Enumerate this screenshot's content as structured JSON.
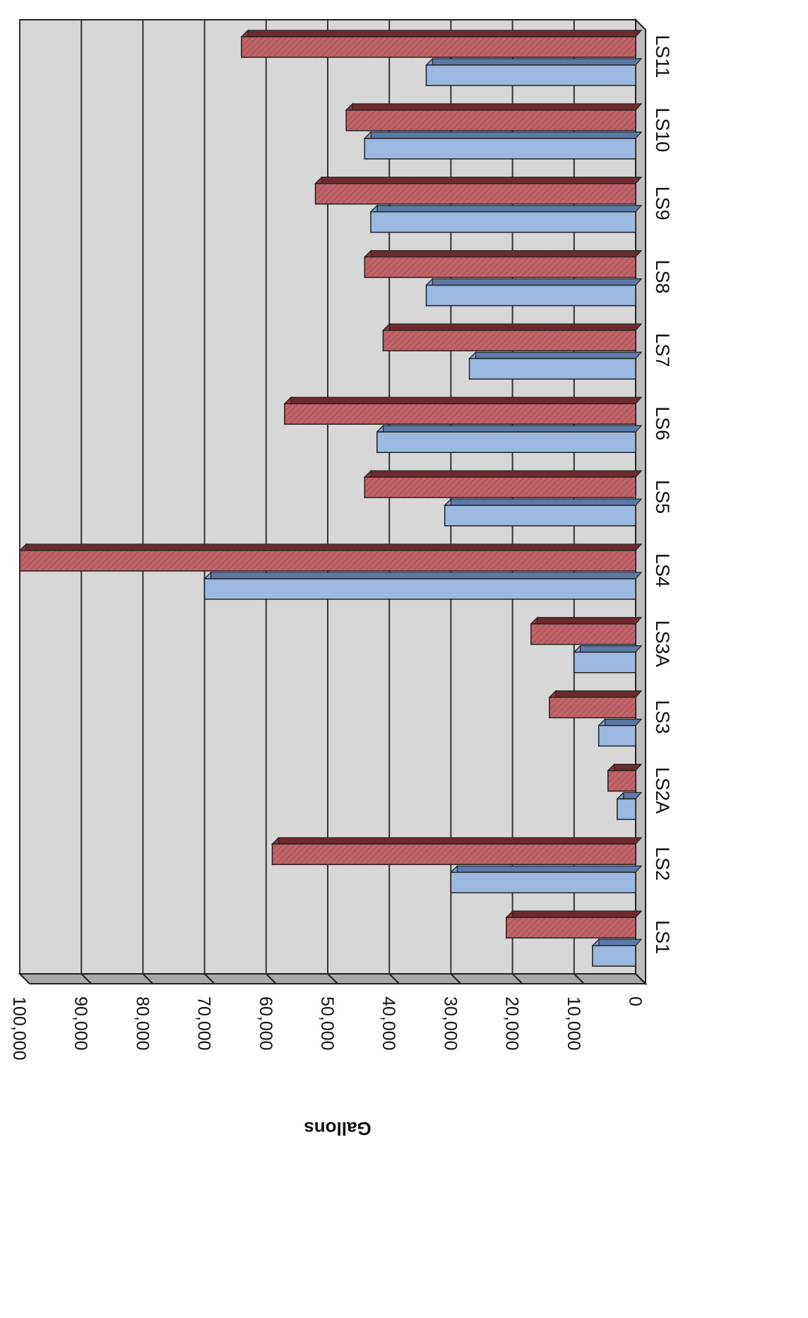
{
  "chart_data": {
    "type": "bar",
    "orientation": "horizontal",
    "rendering": "3d",
    "rotated": "90deg clockwise",
    "ylabel": "Gallons",
    "categories": [
      "LS1",
      "LS2",
      "LS2A",
      "LS3",
      "LS3A",
      "LS4",
      "LS5",
      "LS6",
      "LS7",
      "LS8",
      "LS9",
      "LS10",
      "LS11"
    ],
    "series": [
      {
        "values": [
          7000,
          30000,
          3000,
          6000,
          10000,
          70000,
          31000,
          42000,
          27000,
          34000,
          43000,
          44000,
          34000
        ]
      },
      {
        "values": [
          21000,
          59000,
          4500,
          14000,
          17000,
          100000,
          44000,
          57000,
          41000,
          44000,
          52000,
          47000,
          64000
        ]
      }
    ],
    "xlim": [
      0,
      100000
    ],
    "ticks": [
      "0",
      "10,000",
      "20,000",
      "30,000",
      "40,000",
      "50,000",
      "60,000",
      "70,000",
      "80,000",
      "90,000",
      "100,000"
    ],
    "tick_values": [
      0,
      10000,
      20000,
      30000,
      40000,
      50000,
      60000,
      70000,
      80000,
      90000,
      100000
    ],
    "grid": true,
    "colors": {
      "series_blue": "#9ab8e0",
      "series_blue_edge": "#5c7aa8",
      "series_red": "#c0646c",
      "series_red_dark": "#6e2b2f",
      "wall": "#d7d7d7",
      "floor": "#a8a8a8",
      "gridline": "#333333"
    }
  }
}
